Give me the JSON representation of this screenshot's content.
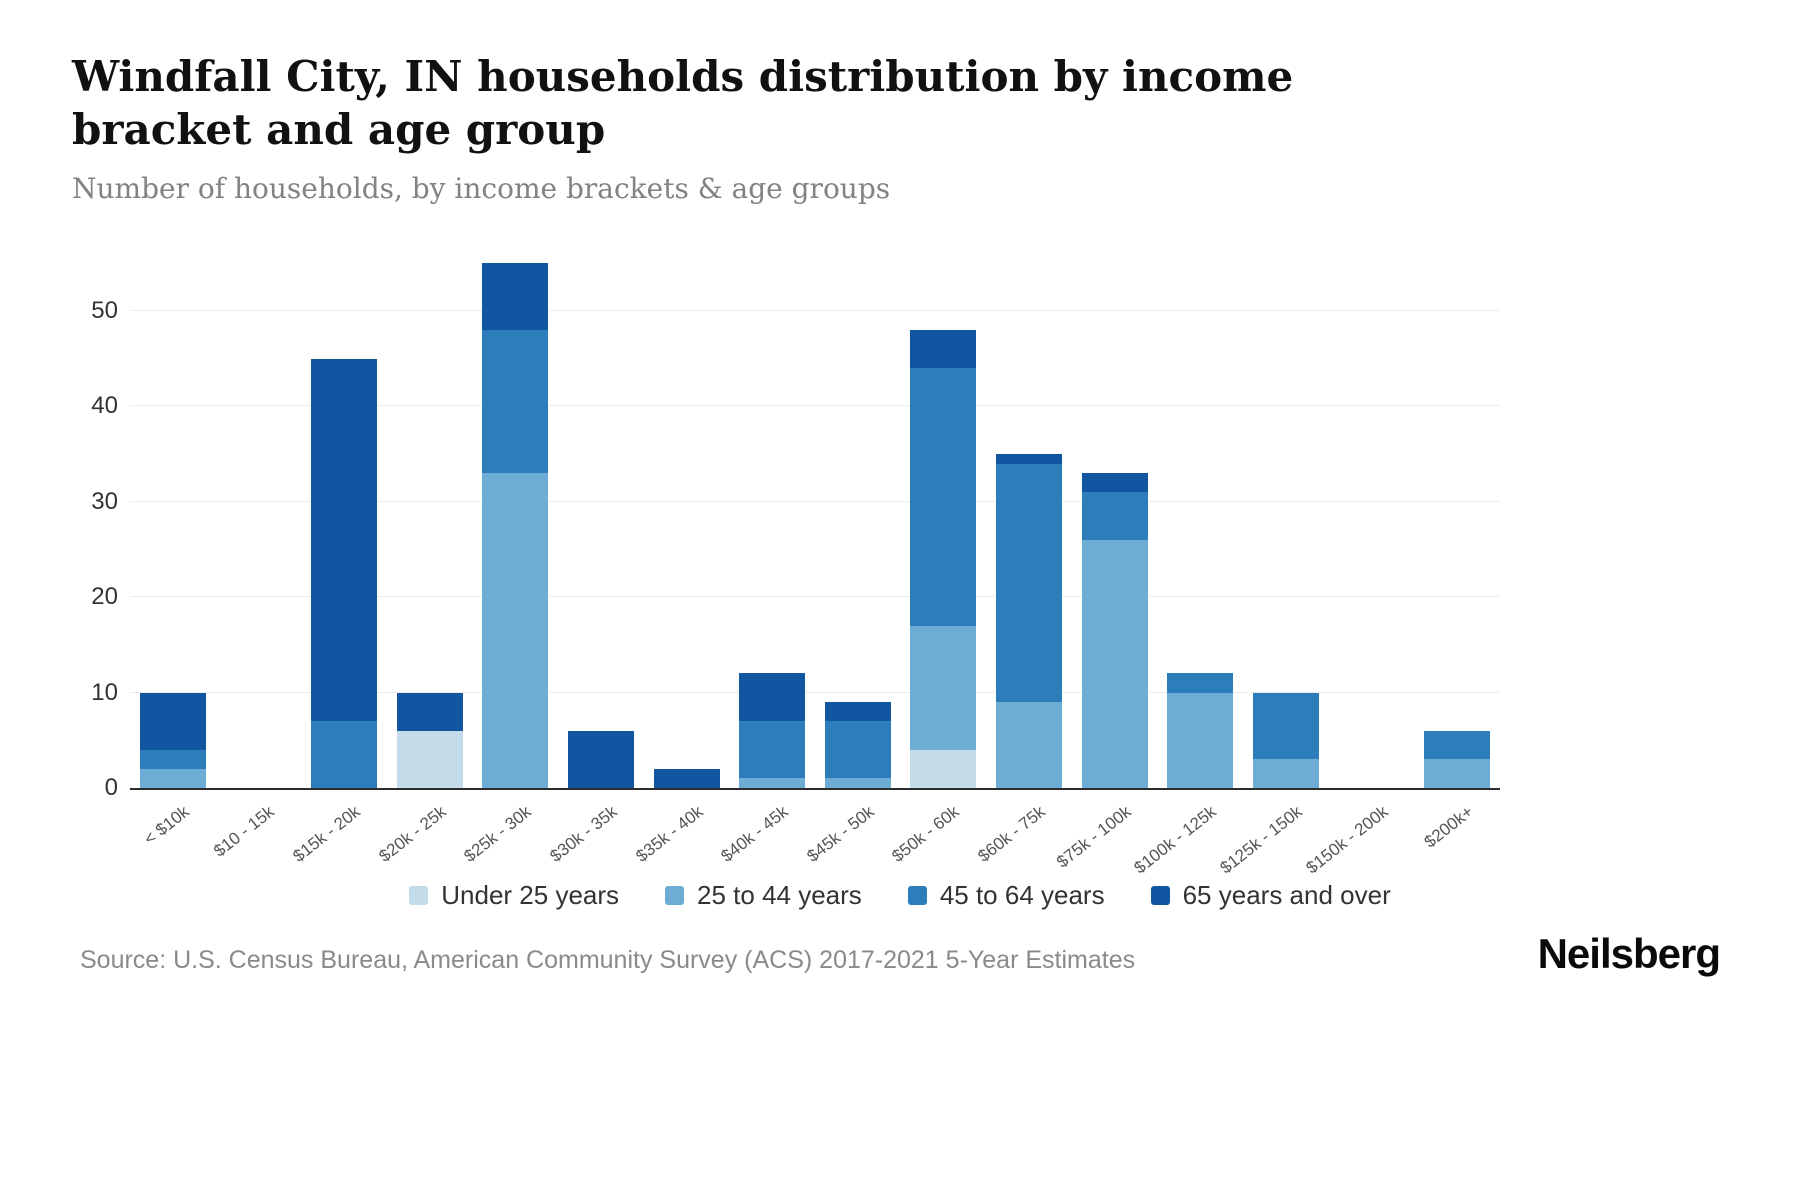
{
  "page": {
    "title": "Windfall City, IN households distribution by income bracket and age group",
    "subtitle": "Number of households, by income brackets & age groups",
    "source": "Source: U.S. Census Bureau, American Community Survey (ACS) 2017-2021 5-Year Estimates",
    "logo": "Neilsberg"
  },
  "chart_data": {
    "type": "bar",
    "stacked": true,
    "title": "Windfall City, IN households distribution by income bracket and age group",
    "subtitle": "Number of households, by income brackets & age groups",
    "xlabel": "",
    "ylabel": "Number of households",
    "grid": true,
    "legend_position": "bottom",
    "yticks": [
      0,
      10,
      20,
      30,
      40,
      50
    ],
    "ylim": [
      0,
      57
    ],
    "categories": [
      "< $10k",
      "$10 - 15k",
      "$15k - 20k",
      "$20k - 25k",
      "$25k - 30k",
      "$30k - 35k",
      "$35k - 40k",
      "$40k - 45k",
      "$45k - 50k",
      "$50k - 60k",
      "$60k - 75k",
      "$75k - 100k",
      "$100k - 125k",
      "$125k - 150k",
      "$150k - 200k",
      "$200k+"
    ],
    "series": [
      {
        "name": "Under 25 years",
        "color": "#c4dbea",
        "values": [
          0,
          0,
          0,
          6,
          0,
          0,
          0,
          0,
          0,
          4,
          0,
          0,
          0,
          0,
          0,
          0
        ]
      },
      {
        "name": "25 to 44 years",
        "color": "#6cacd5",
        "values": [
          2,
          0,
          0,
          0,
          33,
          0,
          0,
          1,
          1,
          13,
          9,
          26,
          10,
          3,
          0,
          3
        ]
      },
      {
        "name": "45 to 64 years",
        "color": "#2d7dbb",
        "values": [
          2,
          0,
          7,
          0,
          15,
          0,
          0,
          6,
          6,
          27,
          25,
          5,
          2,
          7,
          0,
          3
        ]
      },
      {
        "name": "65 years and over",
        "color": "#1256a2",
        "values": [
          6,
          0,
          38,
          4,
          7,
          6,
          2,
          5,
          2,
          4,
          1,
          2,
          0,
          0,
          0,
          0
        ]
      }
    ],
    "totals": [
      10,
      0,
      45,
      10,
      55,
      6,
      2,
      12,
      9,
      48,
      35,
      33,
      12,
      10,
      0,
      6
    ]
  }
}
